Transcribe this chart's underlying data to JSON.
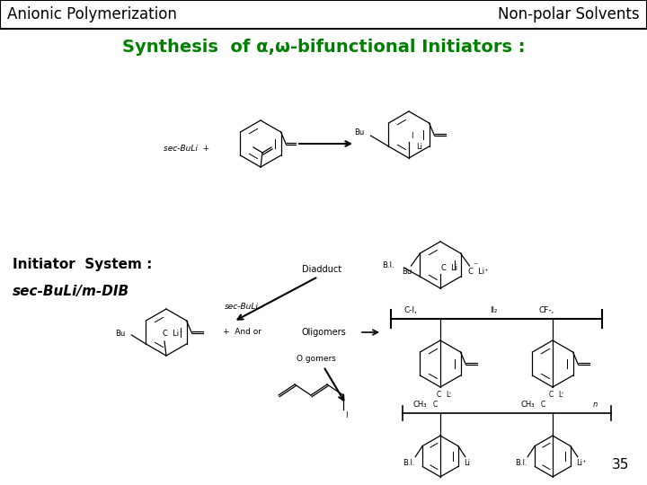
{
  "bg_color": "#ffffff",
  "top_left_text": "Anionic Polymerization",
  "top_right_text": "Non-polar Solvents",
  "title_text": "Synthesis  of α,ω-bifunctional Initiators :",
  "title_color": "#008000",
  "header_fontsize": 12,
  "title_fontsize": 14,
  "page_number": "35"
}
